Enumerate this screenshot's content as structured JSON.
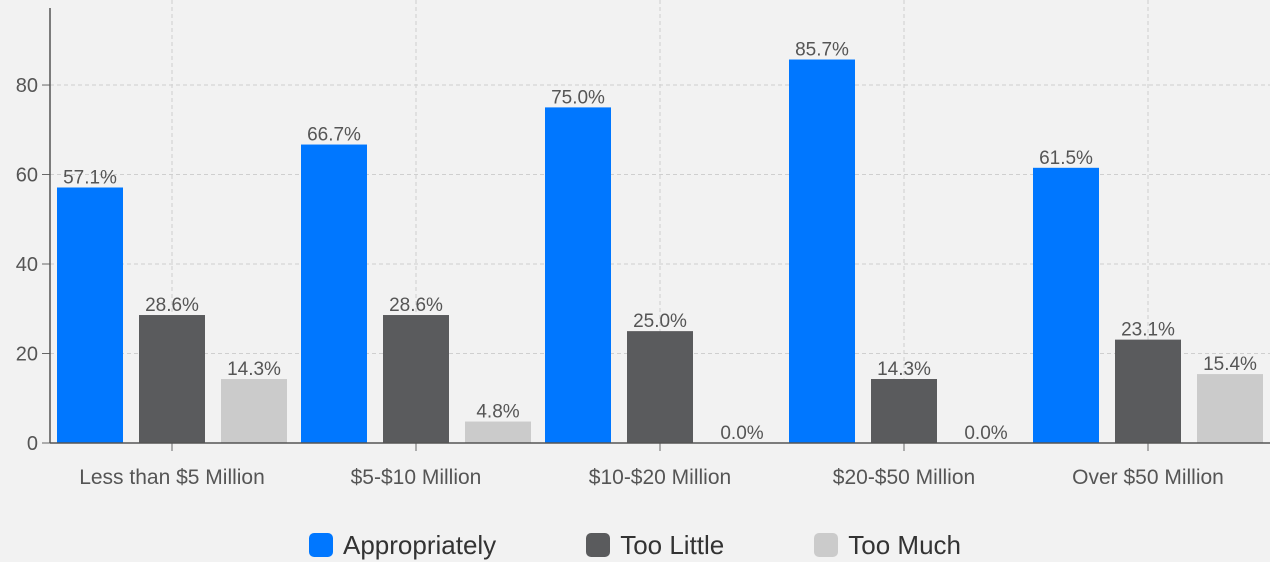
{
  "chart_data": {
    "type": "bar",
    "categories": [
      "Less than $5 Million",
      "$5-$10 Million",
      "$10-$20 Million",
      "$20-$50 Million",
      "Over $50 Million"
    ],
    "series": [
      {
        "name": "Appropriately",
        "values": [
          57.1,
          66.7,
          75.0,
          85.7,
          61.5
        ],
        "labels": [
          "57.1%",
          "66.7%",
          "75.0%",
          "85.7%",
          "61.5%"
        ],
        "color": "#0077ff"
      },
      {
        "name": "Too Little",
        "values": [
          28.6,
          28.6,
          25.0,
          14.3,
          23.1
        ],
        "labels": [
          "28.6%",
          "28.6%",
          "25.0%",
          "14.3%",
          "23.1%"
        ],
        "color": "#5a5b5d"
      },
      {
        "name": "Too Much",
        "values": [
          14.3,
          4.8,
          0.0,
          0.0,
          15.4
        ],
        "labels": [
          "14.3%",
          "4.8%",
          "0.0%",
          "0.0%",
          "15.4%"
        ],
        "color": "#cbcbcb"
      }
    ],
    "yticks": [
      0,
      20,
      40,
      60,
      80
    ],
    "ylim": [
      0,
      99
    ],
    "grid": true,
    "legend_position": "bottom"
  },
  "legend": {
    "items": [
      {
        "label": "Appropriately",
        "color": "#0077ff"
      },
      {
        "label": "Too Little",
        "color": "#5a5b5d"
      },
      {
        "label": "Too Much",
        "color": "#cbcbcb"
      }
    ]
  }
}
